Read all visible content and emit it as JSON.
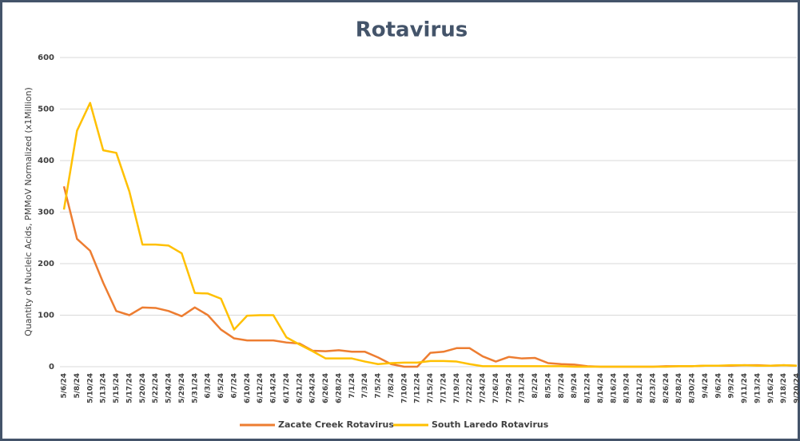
{
  "chart_data": {
    "type": "line",
    "title": "Rotavirus",
    "y_label": "Quantity of Nucleic Acids, PMMoV Normalized (x1Million)",
    "categories": [
      "5/6/24",
      "5/8/24",
      "5/10/24",
      "5/13/24",
      "5/15/24",
      "5/17/24",
      "5/20/24",
      "5/22/24",
      "5/24/24",
      "5/29/24",
      "5/31/24",
      "6/3/24",
      "6/5/24",
      "6/7/24",
      "6/10/24",
      "6/12/24",
      "6/14/24",
      "6/17/24",
      "6/21/24",
      "6/24/24",
      "6/26/24",
      "6/28/24",
      "7/1/24",
      "7/3/24",
      "7/5/24",
      "7/8/24",
      "7/10/24",
      "7/12/24",
      "7/15/24",
      "7/17/24",
      "7/19/24",
      "7/22/24",
      "7/24/24",
      "7/26/24",
      "7/29/24",
      "7/31/24",
      "8/2/24",
      "8/5/24",
      "8/7/24",
      "8/9/24",
      "8/12/24",
      "8/14/24",
      "8/16/24",
      "8/19/24",
      "8/21/24",
      "8/23/24",
      "8/26/24",
      "8/28/24",
      "8/30/24",
      "9/4/24",
      "9/6/24",
      "9/9/24",
      "9/11/24",
      "9/13/24",
      "9/16/24",
      "9/18/24",
      "9/20/24"
    ],
    "series": [
      {
        "name": "Zacate Creek Rotavirus",
        "color": "#ed7d31",
        "values": [
          350,
          248,
          225,
          163,
          108,
          100,
          115,
          114,
          108,
          98,
          115,
          100,
          72,
          55,
          51,
          51,
          51,
          47,
          45,
          31,
          30,
          32,
          29,
          29,
          18,
          5,
          0,
          0,
          27,
          29,
          36,
          36,
          20,
          10,
          19,
          16,
          17,
          7,
          5,
          4,
          1,
          0,
          0,
          0,
          0,
          0,
          1,
          1,
          1,
          2,
          2,
          2,
          3,
          3,
          2,
          3,
          2
        ]
      },
      {
        "name": "South Laredo Rotavirus",
        "color": "#ffc000",
        "values": [
          305,
          458,
          512,
          420,
          415,
          340,
          237,
          237,
          235,
          220,
          143,
          142,
          132,
          72,
          99,
          100,
          100,
          57,
          43,
          30,
          16,
          16,
          16,
          10,
          5,
          7,
          8,
          8,
          11,
          11,
          10,
          5,
          1,
          1,
          1,
          1,
          1,
          1,
          1,
          0,
          0,
          0,
          0,
          0,
          0,
          0,
          0,
          1,
          1,
          2,
          2,
          3,
          3,
          2,
          2,
          3,
          2
        ]
      }
    ],
    "ylim": [
      0,
      600
    ],
    "yticks": [
      0,
      100,
      200,
      300,
      400,
      500,
      600
    ],
    "grid": true
  }
}
